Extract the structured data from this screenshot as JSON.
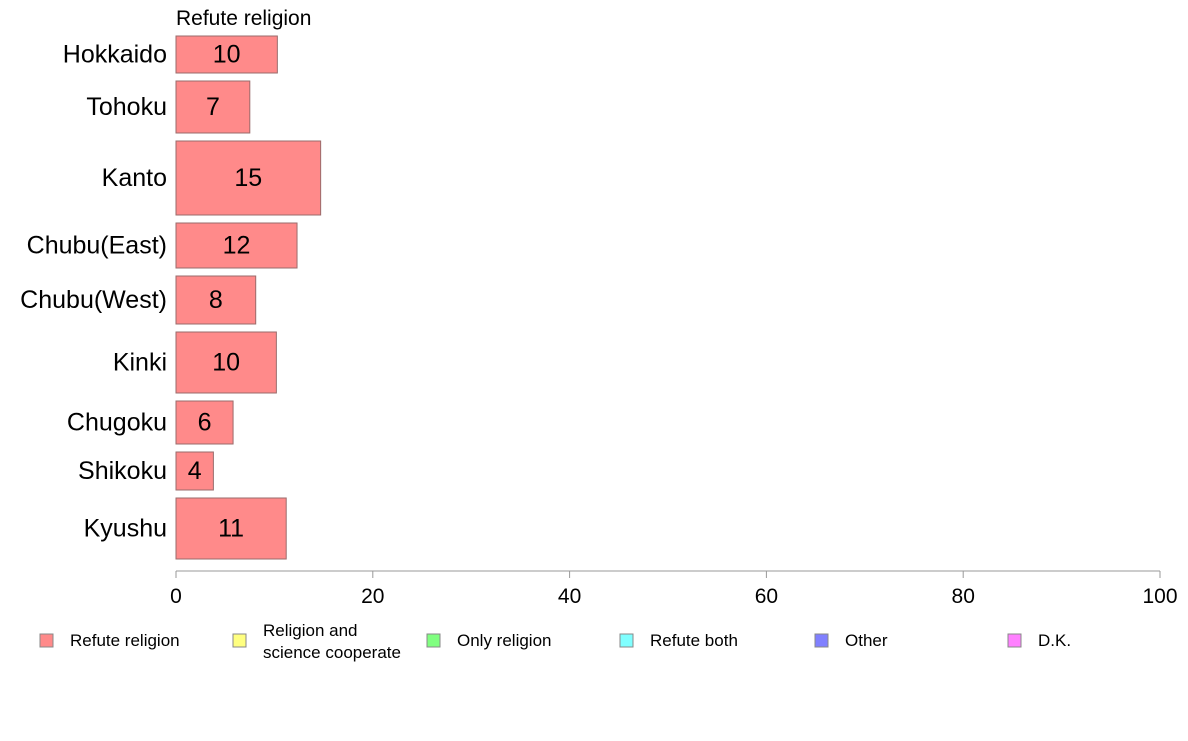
{
  "chart_data": {
    "type": "bar",
    "orientation": "horizontal",
    "stacked": true,
    "title": "Refute religion",
    "categories": [
      "Hokkaido",
      "Tohoku",
      "Kanto",
      "Chubu(East)",
      "Chubu(West)",
      "Kinki",
      "Chugoku",
      "Shikoku",
      "Kyushu"
    ],
    "series": [
      {
        "name": "Refute religion",
        "color": "#FF8A8A",
        "values": [
          10.3,
          7.5,
          14.7,
          12.3,
          8.1,
          10.2,
          5.8,
          3.8,
          11.2
        ],
        "labels": [
          "10",
          "7",
          "15",
          "12",
          "8",
          "10",
          "6",
          "4",
          "11"
        ]
      }
    ],
    "xlim": [
      0,
      100
    ],
    "xticks": [
      "0",
      "20",
      "40",
      "60",
      "80",
      "100"
    ],
    "legend_position": "bottom",
    "grid": false,
    "legend": [
      {
        "label": "Refute religion",
        "color": "#FF8A8A"
      },
      {
        "label": "Religion and\nscience cooperate",
        "color": "#FFFF80"
      },
      {
        "label": "Only religion",
        "color": "#80FF80"
      },
      {
        "label": "Refute both",
        "color": "#80FFFF"
      },
      {
        "label": "Other",
        "color": "#8080FF"
      },
      {
        "label": "D.K.",
        "color": "#FF80FF"
      }
    ]
  }
}
